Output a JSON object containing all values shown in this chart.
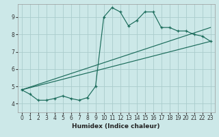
{
  "xlabel": "Humidex (Indice chaleur)",
  "bg_color": "#cce8e8",
  "line_color": "#1a6b5a",
  "grid_color": "#aacccc",
  "xlim": [
    -0.5,
    23.5
  ],
  "ylim": [
    3.5,
    9.75
  ],
  "xticks": [
    0,
    1,
    2,
    3,
    4,
    5,
    6,
    7,
    8,
    9,
    10,
    11,
    12,
    13,
    14,
    15,
    16,
    17,
    18,
    19,
    20,
    21,
    22,
    23
  ],
  "yticks": [
    4,
    5,
    6,
    7,
    8,
    9
  ],
  "curve1_x": [
    0,
    1,
    2,
    3,
    4,
    5,
    6,
    7,
    8,
    9,
    10,
    11,
    12,
    13,
    14,
    15,
    16,
    17,
    18,
    19,
    20,
    21,
    22,
    23
  ],
  "curve1_y": [
    4.8,
    4.55,
    4.2,
    4.2,
    4.3,
    4.45,
    4.3,
    4.2,
    4.35,
    5.0,
    9.0,
    9.55,
    9.3,
    8.5,
    8.8,
    9.3,
    9.3,
    8.4,
    8.4,
    8.2,
    8.2,
    8.0,
    7.9,
    7.6
  ],
  "line1_x": [
    0,
    23
  ],
  "line1_y": [
    4.8,
    8.4
  ],
  "line2_x": [
    0,
    23
  ],
  "line2_y": [
    4.8,
    7.6
  ],
  "tick_fontsize": 5.5,
  "xlabel_fontsize": 6.5
}
